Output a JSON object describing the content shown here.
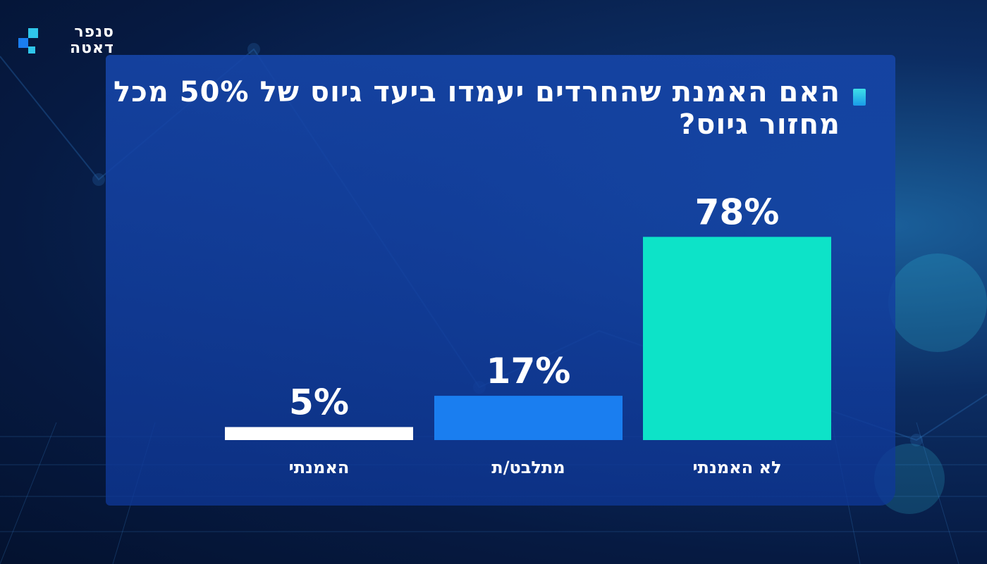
{
  "brand": {
    "logo_line1": "סנפר",
    "logo_line2": "דאטה"
  },
  "colors": {
    "panel": "#1546aa",
    "bar_yes": "#ffffff",
    "bar_unsure": "#1a7ef0",
    "bar_no": "#0de3c8",
    "title_marker": "#2fc6ea"
  },
  "chart_data": {
    "type": "bar",
    "title": "האם האמנת שהחרדים יעמדו ביעד גיוס של 50% מכל מחזור גיוס?",
    "categories": [
      "האמנתי",
      "מתלבט/ת",
      "לא האמנתי"
    ],
    "values": [
      5,
      17,
      78
    ],
    "value_labels": [
      "5%",
      "17%",
      "78%"
    ],
    "unit": "%",
    "ylim": [
      0,
      100
    ],
    "grid": false,
    "legend": "none"
  }
}
